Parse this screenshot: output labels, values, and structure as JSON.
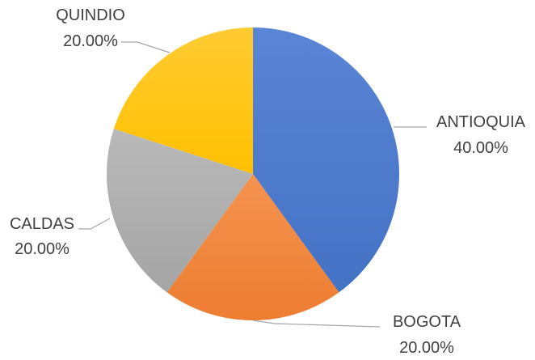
{
  "chart_data": {
    "type": "pie",
    "title": "",
    "slices": [
      {
        "label": "ANTIOQUIA",
        "value": 40,
        "percent_label": "40.00%",
        "color": "#4472c4",
        "color_light": "#5b85d6"
      },
      {
        "label": "BOGOTA",
        "value": 20,
        "percent_label": "20.00%",
        "color": "#ed7d31",
        "color_light": "#f4934f"
      },
      {
        "label": "CALDAS",
        "value": 20,
        "percent_label": "20.00%",
        "color": "#a5a5a5",
        "color_light": "#b9b9b9"
      },
      {
        "label": "QUINDIO",
        "value": 20,
        "percent_label": "20.00%",
        "color": "#ffc000",
        "color_light": "#ffcb33"
      }
    ],
    "start_angle_deg": 0,
    "direction": "clockwise",
    "legend": "none",
    "data_labels": "outside-with-leader-lines"
  }
}
